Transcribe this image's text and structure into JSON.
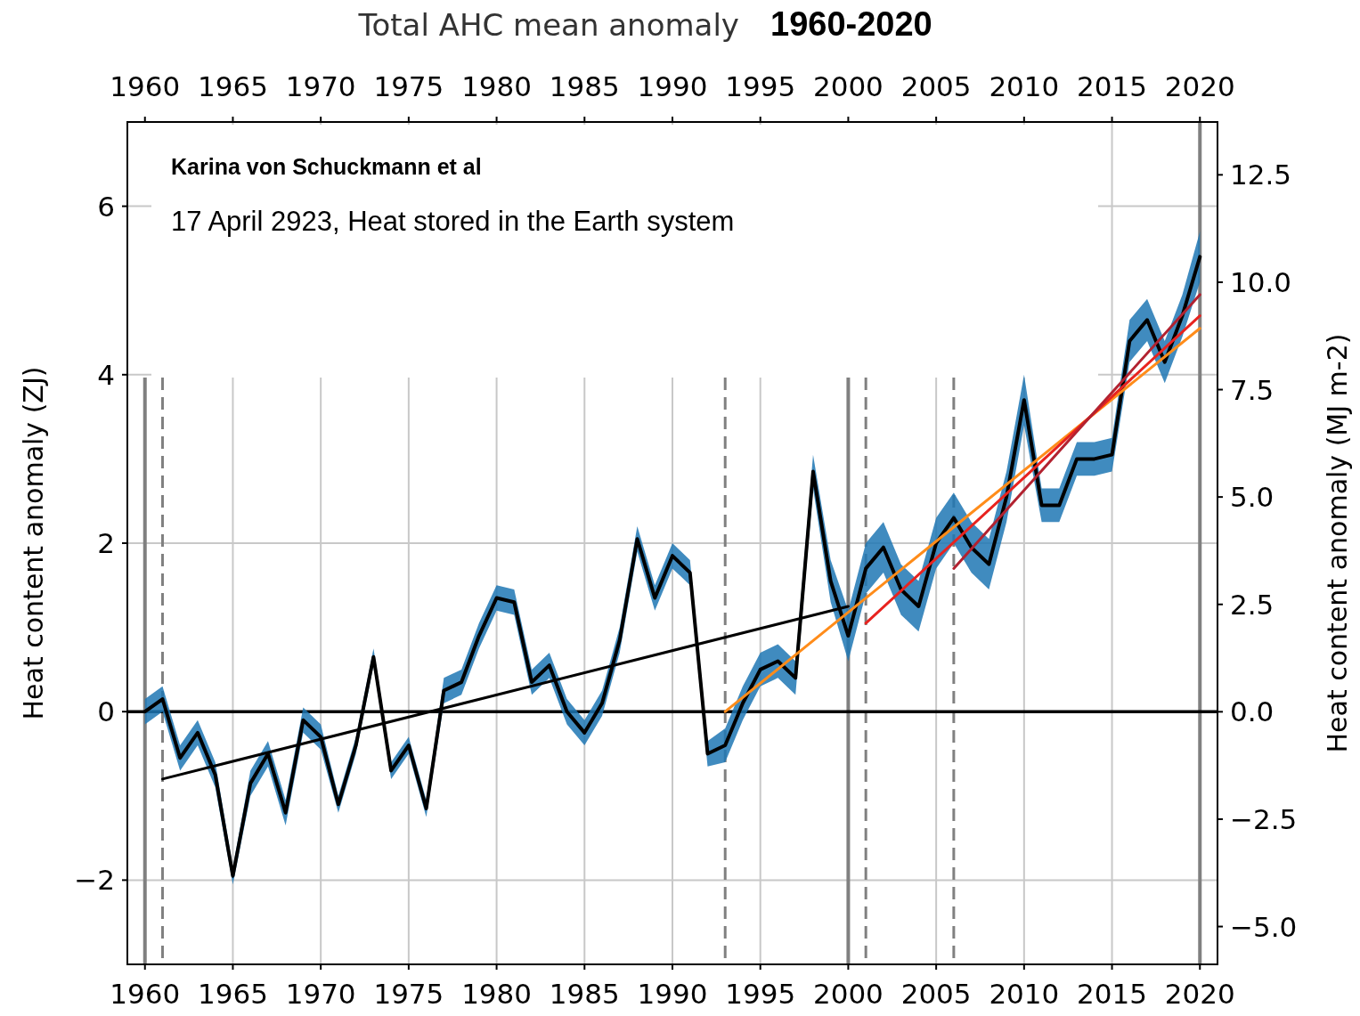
{
  "chart_data": {
    "type": "line",
    "title": "Total AHC mean anomaly",
    "subtitle": "1960-2020",
    "ylabel": "Heat content anomaly (ZJ)",
    "y2label": "Heat content anomaly (MJ m-2)",
    "annotations": [
      "Karina von Schuckmann et al",
      "17 April 2923, Heat stored in the Earth system"
    ],
    "x": [
      1960,
      1961,
      1962,
      1963,
      1964,
      1965,
      1966,
      1967,
      1968,
      1969,
      1970,
      1971,
      1972,
      1973,
      1974,
      1975,
      1976,
      1977,
      1978,
      1979,
      1980,
      1981,
      1982,
      1983,
      1984,
      1985,
      1986,
      1987,
      1988,
      1989,
      1990,
      1991,
      1992,
      1993,
      1994,
      1995,
      1996,
      1997,
      1998,
      1999,
      2000,
      2001,
      2002,
      2003,
      2004,
      2005,
      2006,
      2007,
      2008,
      2009,
      2010,
      2011,
      2012,
      2013,
      2014,
      2015,
      2016,
      2017,
      2018,
      2019,
      2020
    ],
    "series": [
      {
        "color": "#000000",
        "values": [
          0.0,
          0.15,
          -0.55,
          -0.25,
          -0.75,
          -1.95,
          -0.85,
          -0.5,
          -1.2,
          -0.1,
          -0.3,
          -1.1,
          -0.4,
          0.65,
          -0.7,
          -0.4,
          -1.15,
          0.25,
          0.35,
          0.9,
          1.35,
          1.3,
          0.35,
          0.55,
          0.0,
          -0.25,
          0.1,
          0.85,
          2.05,
          1.35,
          1.85,
          1.65,
          -0.5,
          -0.4,
          0.1,
          0.5,
          0.6,
          0.4,
          2.85,
          1.55,
          0.9,
          1.7,
          1.95,
          1.45,
          1.25,
          2.0,
          2.3,
          1.95,
          1.75,
          2.55,
          3.7,
          2.45,
          2.45,
          3.0,
          3.0,
          3.05,
          4.4,
          4.65,
          4.15,
          4.7,
          5.4
        ],
        "lower": [
          -0.15,
          0.0,
          -0.7,
          -0.4,
          -0.9,
          -2.05,
          -1.0,
          -0.65,
          -1.35,
          -0.25,
          -0.45,
          -1.2,
          -0.5,
          0.55,
          -0.8,
          -0.5,
          -1.25,
          0.1,
          0.2,
          0.75,
          1.2,
          1.15,
          0.2,
          0.4,
          -0.15,
          -0.4,
          -0.05,
          0.7,
          1.9,
          1.2,
          1.7,
          1.5,
          -0.65,
          -0.6,
          -0.1,
          0.3,
          0.4,
          0.2,
          2.65,
          1.3,
          0.6,
          1.4,
          1.65,
          1.15,
          0.95,
          1.7,
          2.0,
          1.65,
          1.45,
          2.25,
          3.4,
          2.25,
          2.25,
          2.8,
          2.8,
          2.85,
          4.15,
          4.4,
          3.9,
          4.45,
          5.1
        ],
        "upper": [
          0.15,
          0.3,
          -0.4,
          -0.1,
          -0.6,
          -1.85,
          -0.7,
          -0.35,
          -1.05,
          0.05,
          -0.15,
          -1.0,
          -0.3,
          0.75,
          -0.6,
          -0.3,
          -1.05,
          0.4,
          0.5,
          1.05,
          1.5,
          1.45,
          0.5,
          0.7,
          0.15,
          -0.1,
          0.25,
          1.0,
          2.2,
          1.5,
          2.0,
          1.8,
          -0.35,
          -0.2,
          0.3,
          0.7,
          0.8,
          0.6,
          3.05,
          1.8,
          1.2,
          2.0,
          2.25,
          1.75,
          1.55,
          2.3,
          2.6,
          2.25,
          2.05,
          2.85,
          4.0,
          2.65,
          2.65,
          3.2,
          3.2,
          3.25,
          4.65,
          4.9,
          4.4,
          4.95,
          5.7
        ]
      },
      {
        "color": "#000000",
        "x": [
          1961,
          2000
        ],
        "values": [
          -0.8,
          1.25
        ]
      },
      {
        "color": "#ff8c1a",
        "x": [
          1993,
          2020
        ],
        "values": [
          0.0,
          4.55
        ]
      },
      {
        "color": "#e8231f",
        "x": [
          2001,
          2020
        ],
        "values": [
          1.05,
          4.7
        ]
      },
      {
        "color": "#b22230",
        "x": [
          2006,
          2020
        ],
        "values": [
          1.7,
          4.95
        ]
      }
    ],
    "xlim": [
      1959,
      2021
    ],
    "xticks": [
      1960,
      1965,
      1970,
      1975,
      1980,
      1985,
      1990,
      1995,
      2000,
      2005,
      2010,
      2015,
      2020
    ],
    "x2lim": [
      1959,
      2021
    ],
    "x2ticks": [
      1960,
      1965,
      1970,
      1975,
      1980,
      1985,
      1990,
      1995,
      2000,
      2005,
      2010,
      2015,
      2020
    ],
    "ylim": [
      -3,
      7
    ],
    "yticks": [
      {
        "value": -2,
        "label": "−2"
      },
      0,
      2,
      4,
      6
    ],
    "y2lim": [
      -5.88,
      13.73
    ],
    "y2ticks": [
      {
        "value": -5,
        "label": "−5.0"
      },
      {
        "value": -2.5,
        "label": "−2.5"
      },
      {
        "value": 0,
        "label": "0.0"
      },
      {
        "value": 2.5,
        "label": "2.5"
      },
      {
        "value": 5,
        "label": "5.0"
      },
      {
        "value": 7.5,
        "label": "7.5"
      },
      {
        "value": 10,
        "label": "10.0"
      },
      {
        "value": 12.5,
        "label": "12.5"
      }
    ],
    "grid": true,
    "marker": "none",
    "line_style": "solid",
    "ref_lines": [
      {
        "axis": "x",
        "value": 1960,
        "color": "#808080",
        "line_style": "solid"
      },
      {
        "axis": "x",
        "value": 2000,
        "color": "#808080",
        "line_style": "solid"
      },
      {
        "axis": "x",
        "value": 2020,
        "color": "#808080",
        "line_style": "solid"
      },
      {
        "axis": "x",
        "value": 1961,
        "color": "#808080",
        "line_style": "dashed"
      },
      {
        "axis": "x",
        "value": 1993,
        "color": "#808080",
        "line_style": "dashed"
      },
      {
        "axis": "x",
        "value": 2001,
        "color": "#808080",
        "line_style": "dashed"
      },
      {
        "axis": "x",
        "value": 2006,
        "color": "#808080",
        "line_style": "dashed"
      },
      {
        "axis": "y",
        "value": 0,
        "color": "#000000",
        "line_style": "solid"
      }
    ]
  }
}
